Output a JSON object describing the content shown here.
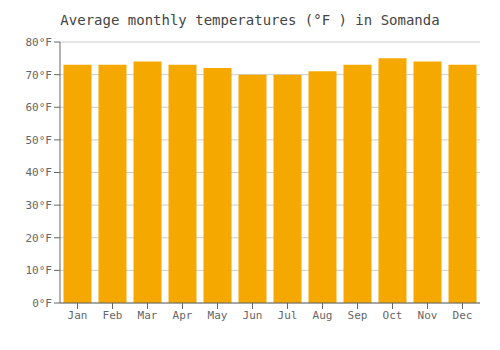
{
  "chart_data": {
    "type": "bar",
    "title": "Average monthly temperatures (°F ) in Somanda",
    "categories": [
      "Jan",
      "Feb",
      "Mar",
      "Apr",
      "May",
      "Jun",
      "Jul",
      "Aug",
      "Sep",
      "Oct",
      "Nov",
      "Dec"
    ],
    "values": [
      73,
      73,
      74,
      73,
      72,
      70,
      70,
      71,
      73,
      75,
      74,
      73
    ],
    "color": "#F5A800",
    "ylim": [
      0,
      80
    ],
    "yticks": [
      {
        "value": 0,
        "label": "0°F"
      },
      {
        "value": 10,
        "label": "10°F"
      },
      {
        "value": 20,
        "label": "20°F"
      },
      {
        "value": 30,
        "label": "30°F"
      },
      {
        "value": 40,
        "label": "40°F"
      },
      {
        "value": 50,
        "label": "50°F"
      },
      {
        "value": 60,
        "label": "60°F"
      },
      {
        "value": 70,
        "label": "70°F"
      },
      {
        "value": 80,
        "label": "80°F"
      }
    ],
    "grid": true
  }
}
